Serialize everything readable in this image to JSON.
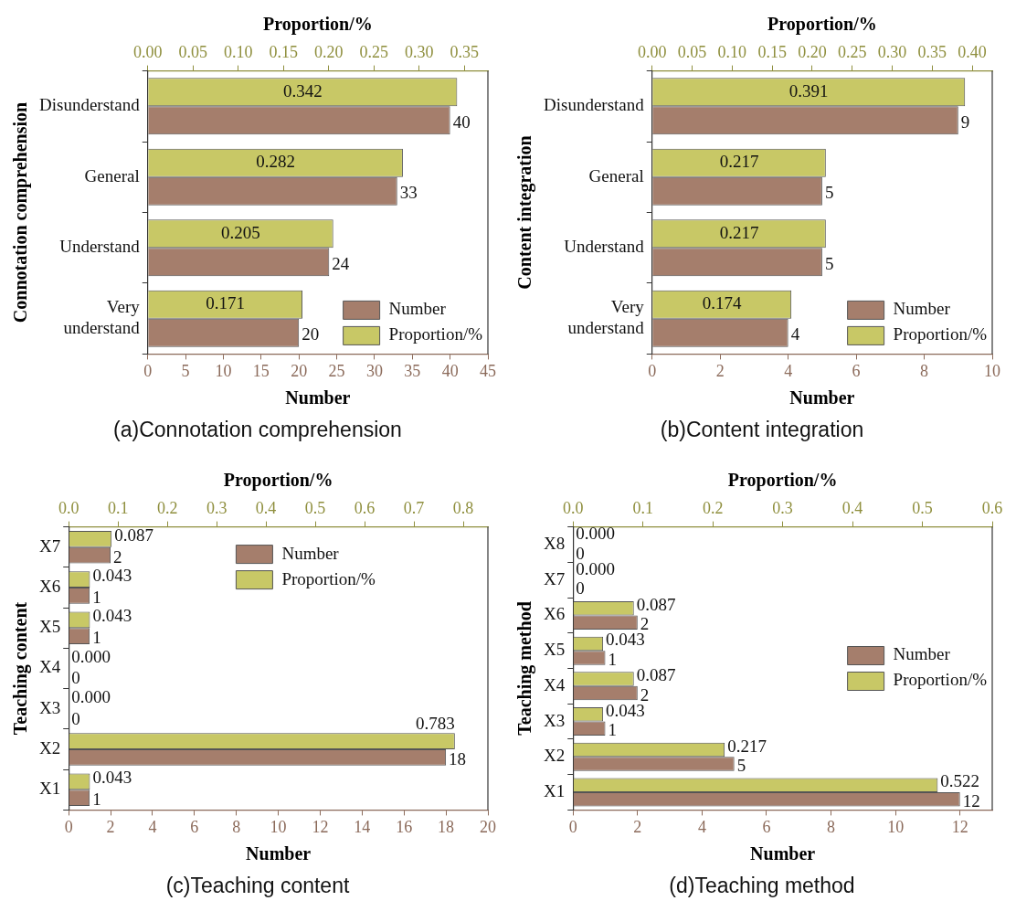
{
  "chart_data": [
    {
      "type": "bar",
      "orientation": "horizontal",
      "categories": [
        "Disunderstand",
        "General",
        "Understand",
        "Very understand"
      ],
      "xlabel": "Number",
      "x2label": "Proportion/%",
      "ylabel": "Connotation comprehension",
      "annotations": [
        "(a)Connotation comprehension"
      ],
      "xlim": [
        0,
        45
      ],
      "xticks": [
        0,
        5,
        10,
        15,
        20,
        25,
        30,
        35,
        40,
        45
      ],
      "x2lim": [
        0,
        0.376
      ],
      "x2ticks": [
        {
          "value": 0,
          "label": "0.00"
        },
        {
          "value": 0.05,
          "label": "0.05"
        },
        {
          "value": 0.1,
          "label": "0.10"
        },
        {
          "value": 0.15,
          "label": "0.15"
        },
        {
          "value": 0.2,
          "label": "0.20"
        },
        {
          "value": 0.25,
          "label": "0.25"
        },
        {
          "value": 0.3,
          "label": "0.30"
        },
        {
          "value": 0.35,
          "label": "0.35"
        }
      ],
      "legend": "bottom right",
      "series": [
        {
          "name": "Number",
          "color": "#a57e6c",
          "values": [
            40,
            33,
            24,
            20
          ],
          "value_labels": [
            "40",
            "33",
            "24",
            "20"
          ]
        },
        {
          "name": "Proportion/%",
          "color": "#c8c866",
          "axis": "x2",
          "values": [
            0.342,
            0.282,
            0.205,
            0.171
          ],
          "value_labels": [
            "0.342",
            "0.282",
            "0.205",
            "0.171"
          ]
        }
      ]
    },
    {
      "type": "bar",
      "orientation": "horizontal",
      "categories": [
        "Disunderstand",
        "General",
        "Understand",
        "Very understand"
      ],
      "xlabel": "Number",
      "x2label": "Proportion/%",
      "ylabel": "Content integration",
      "annotations": [
        "(b)Content integration"
      ],
      "xlim": [
        0,
        10
      ],
      "xticks": [
        0,
        2,
        4,
        6,
        8,
        10
      ],
      "x2lim": [
        0,
        0.425
      ],
      "x2ticks": [
        {
          "value": 0,
          "label": "0.00"
        },
        {
          "value": 0.05,
          "label": "0.05"
        },
        {
          "value": 0.1,
          "label": "0.10"
        },
        {
          "value": 0.15,
          "label": "0.15"
        },
        {
          "value": 0.2,
          "label": "0.20"
        },
        {
          "value": 0.25,
          "label": "0.25"
        },
        {
          "value": 0.3,
          "label": "0.30"
        },
        {
          "value": 0.35,
          "label": "0.35"
        },
        {
          "value": 0.4,
          "label": "0.40"
        }
      ],
      "legend": "bottom right",
      "series": [
        {
          "name": "Number",
          "color": "#a57e6c",
          "values": [
            9,
            5,
            5,
            4
          ],
          "value_labels": [
            "9",
            "5",
            "5",
            "4"
          ]
        },
        {
          "name": "Proportion/%",
          "color": "#c8c866",
          "axis": "x2",
          "values": [
            0.391,
            0.217,
            0.217,
            0.174
          ],
          "value_labels": [
            "0.391",
            "0.217",
            "0.217",
            "0.174"
          ]
        }
      ]
    },
    {
      "type": "bar",
      "orientation": "horizontal",
      "categories": [
        "X7",
        "X6",
        "X5",
        "X4",
        "X3",
        "X2",
        "X1"
      ],
      "xlabel": "Number",
      "x2label": "Proportion/%",
      "ylabel": "Teaching content",
      "annotations": [
        "(c)Teaching content"
      ],
      "xlim": [
        0,
        20
      ],
      "xticks": [
        0,
        2,
        4,
        6,
        8,
        10,
        12,
        14,
        16,
        18,
        20
      ],
      "x2lim": [
        0,
        0.85
      ],
      "x2ticks": [
        {
          "value": 0,
          "label": "0.0"
        },
        {
          "value": 0.1,
          "label": "0.1"
        },
        {
          "value": 0.2,
          "label": "0.2"
        },
        {
          "value": 0.3,
          "label": "0.3"
        },
        {
          "value": 0.4,
          "label": "0.4"
        },
        {
          "value": 0.5,
          "label": "0.5"
        },
        {
          "value": 0.6,
          "label": "0.6"
        },
        {
          "value": 0.7,
          "label": "0.7"
        },
        {
          "value": 0.8,
          "label": "0.8"
        }
      ],
      "legend": "top",
      "series": [
        {
          "name": "Number",
          "color": "#a57e6c",
          "values": [
            2,
            1,
            1,
            0,
            0,
            18,
            1
          ],
          "value_labels": [
            "2",
            "1",
            "1",
            "0",
            "0",
            "18",
            "1"
          ]
        },
        {
          "name": "Proportion/%",
          "color": "#c8c866",
          "axis": "x2",
          "values": [
            0.087,
            0.043,
            0.043,
            0,
            0,
            0.783,
            0.043
          ],
          "value_labels": [
            "0.087",
            "0.043",
            "0.043",
            "0.000",
            "0.000",
            "0.783",
            "0.043"
          ]
        }
      ]
    },
    {
      "type": "bar",
      "orientation": "horizontal",
      "categories": [
        "X8",
        "X7",
        "X6",
        "X5",
        "X4",
        "X3",
        "X2",
        "X1"
      ],
      "xlabel": "Number",
      "x2label": "Proportion/%",
      "ylabel": "Teaching method",
      "annotations": [
        "(d)Teaching method"
      ],
      "xlim": [
        0,
        13
      ],
      "xticks": [
        0,
        2,
        4,
        6,
        8,
        10,
        12
      ],
      "x2lim": [
        0,
        0.6
      ],
      "x2ticks": [
        {
          "value": 0,
          "label": "0.0"
        },
        {
          "value": 0.1,
          "label": "0.1"
        },
        {
          "value": 0.2,
          "label": "0.2"
        },
        {
          "value": 0.3,
          "label": "0.3"
        },
        {
          "value": 0.4,
          "label": "0.4"
        },
        {
          "value": 0.5,
          "label": "0.5"
        },
        {
          "value": 0.6,
          "label": "0.6"
        }
      ],
      "legend": "right",
      "series": [
        {
          "name": "Number",
          "color": "#a57e6c",
          "values": [
            0,
            0,
            2,
            1,
            2,
            1,
            5,
            12
          ],
          "value_labels": [
            "0",
            "0",
            "2",
            "1",
            "2",
            "1",
            "5",
            "12"
          ]
        },
        {
          "name": "Proportion/%",
          "color": "#c8c866",
          "axis": "x2",
          "values": [
            0,
            0,
            0.087,
            0.043,
            0.087,
            0.043,
            0.217,
            0.522
          ],
          "value_labels": [
            "0.000",
            "0.000",
            "0.087",
            "0.043",
            "0.087",
            "0.043",
            "0.217",
            "0.522"
          ]
        }
      ]
    }
  ]
}
